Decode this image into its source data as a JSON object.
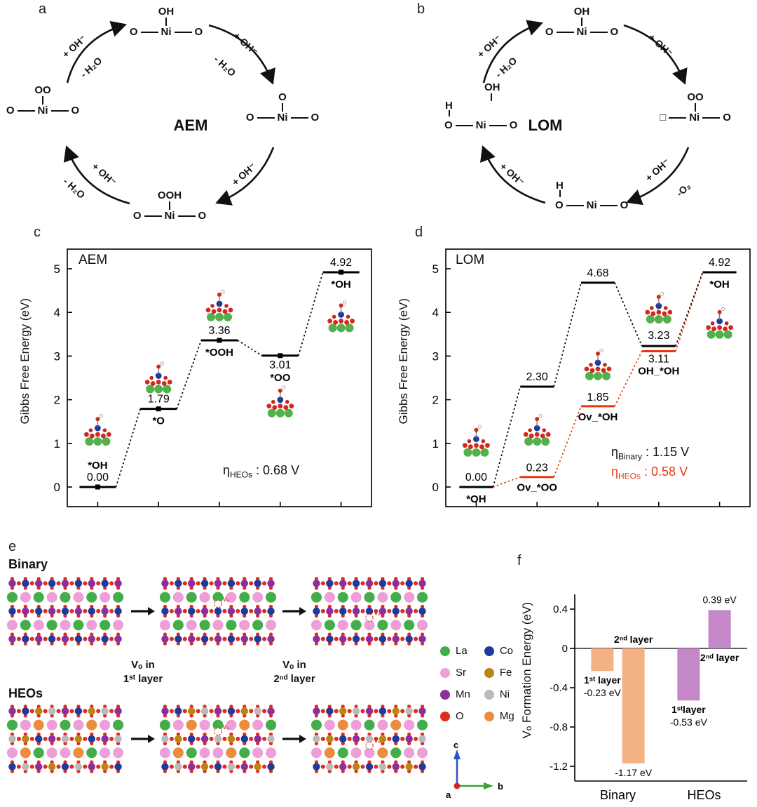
{
  "panels": {
    "a": "a",
    "b": "b",
    "c": "c",
    "d": "d",
    "e": "e",
    "f": "f"
  },
  "cycle_a": {
    "center": "AEM",
    "species": {
      "top": {
        "above": "OH",
        "l": "O",
        "m": "Ni",
        "r": "O"
      },
      "right": {
        "above": "O",
        "l": "O",
        "m": "Ni",
        "r": "O"
      },
      "bottom": {
        "above": "OOH",
        "l": "O",
        "m": "Ni",
        "r": "O"
      },
      "left": {
        "above": "OO",
        "l": "O",
        "m": "Ni",
        "r": "O"
      }
    },
    "arrows": {
      "tl1": "+ OH⁻",
      "tl2": "- H₂O",
      "tr1": "+ OH⁻",
      "tr2": "- H₂O",
      "br1": "+ OH⁻",
      "bl1": "+ OH⁻",
      "bl2": "- H₂O"
    }
  },
  "cycle_b": {
    "center": "LOM",
    "species": {
      "top": {
        "above": "OH",
        "l": "O",
        "m": "Ni",
        "r": "O"
      },
      "right": {
        "above": "OO",
        "l": "□",
        "m": "Ni",
        "r": "O"
      },
      "bottom": {
        "h": "H",
        "l": "O",
        "m": "Ni",
        "r": "O"
      },
      "left": {
        "above": "OH",
        "h": "H",
        "l": "O",
        "m": "Ni",
        "r": "O"
      }
    },
    "arrows": {
      "tl1": "+ OH⁻",
      "tl2": "- H₂O",
      "tr1": "+ OH⁻",
      "br1": "+ OH⁻",
      "br2": "-O₂",
      "bl1": "+ OH⁻"
    }
  },
  "chart_data": [
    {
      "id": "svg-aem",
      "type": "line",
      "title": "AEM",
      "ylabel": "Gibbs Free Energy (eV)",
      "ylim": [
        -0.45,
        5.45
      ],
      "yticks": [
        0,
        1,
        2,
        3,
        4,
        5
      ],
      "n": 5,
      "half": 26,
      "m": {
        "l": 78,
        "t": 10,
        "r": 10,
        "b": 38
      },
      "series": [
        {
          "name": "HEOs",
          "color": "#000000",
          "marker": true,
          "values": [
            0.0,
            1.79,
            3.36,
            3.01,
            4.92
          ],
          "step_labels": [
            "*OH",
            "*O",
            "*OOH",
            "*OO",
            "*OH"
          ]
        }
      ],
      "overpotential": {
        "sym": "η",
        "sub": "HEOs",
        "rest": " : 0.68 V"
      },
      "labels": [
        {
          "step": 0,
          "y": 0,
          "dy": -26,
          "text": "*OH",
          "bold": true
        },
        {
          "step": 0,
          "y": 0,
          "dy": -9,
          "text": "0.00"
        },
        {
          "step": 1,
          "y": 1.79,
          "dy": -9,
          "text": "1.79"
        },
        {
          "step": 1,
          "y": 1.79,
          "dy": 22,
          "text": "*O",
          "bold": true
        },
        {
          "step": 2,
          "y": 3.36,
          "dy": -9,
          "text": "3.36"
        },
        {
          "step": 2,
          "y": 3.36,
          "dy": 22,
          "text": "*OOH",
          "bold": true
        },
        {
          "step": 3,
          "y": 3.01,
          "dy": 18,
          "text": "3.01"
        },
        {
          "step": 3,
          "y": 3.01,
          "dy": 36,
          "text": "*OO",
          "bold": true
        },
        {
          "step": 4,
          "y": 4.92,
          "dy": -9,
          "text": "4.92"
        },
        {
          "step": 4,
          "y": 4.92,
          "dy": 22,
          "text": "*OH",
          "bold": true
        }
      ],
      "insets": [
        {
          "step": 0,
          "y": 1.3
        },
        {
          "step": 1,
          "y": 2.5
        },
        {
          "step": 2,
          "y": 4.15
        },
        {
          "step": 3,
          "y": 1.95
        },
        {
          "step": 4,
          "y": 3.9
        }
      ]
    },
    {
      "id": "svg-lom",
      "type": "line",
      "title": "LOM",
      "ylabel": "Gibbs Free Energy (eV)",
      "ylim": [
        -0.45,
        5.45
      ],
      "yticks": [
        0,
        1,
        2,
        3,
        4,
        5
      ],
      "n": 5,
      "half": 24,
      "m": {
        "l": 78,
        "t": 10,
        "r": 10,
        "b": 38
      },
      "series": [
        {
          "name": "HEOs",
          "color": "#e8380f",
          "marker": false,
          "values": [
            0.0,
            0.23,
            1.85,
            3.11,
            4.92
          ],
          "step_labels": [
            "*OH",
            "Ov_*OO",
            "Ov_*OH",
            "OH_*OH",
            "*OH"
          ]
        },
        {
          "name": "Binary",
          "color": "#000000",
          "marker": false,
          "values": [
            0.0,
            2.3,
            4.68,
            3.23,
            4.92
          ],
          "step_labels": [
            "*OH",
            "",
            "",
            "",
            "*OH"
          ]
        }
      ],
      "overpotentials": [
        {
          "sym": "η",
          "sub": "Binary",
          "rest": " : 1.15 V",
          "color": "#000000"
        },
        {
          "sym": "η",
          "sub": "HEOs",
          "rest": " : 0.58 V",
          "color": "#e8380f"
        }
      ],
      "labels": [
        {
          "step": 0,
          "y": 0,
          "dy": -9,
          "text": "0.00"
        },
        {
          "step": 0,
          "y": 0,
          "dy": 22,
          "text": "*OH",
          "bold": true
        },
        {
          "step": 1,
          "y": 2.3,
          "dy": -9,
          "text": "2.30"
        },
        {
          "step": 1,
          "y": 0.23,
          "dy": -8,
          "text": "0.23"
        },
        {
          "step": 1,
          "y": 0.23,
          "dy": 20,
          "text": "Ov_*OO",
          "bold": true
        },
        {
          "step": 2,
          "y": 4.68,
          "dy": -9,
          "text": "4.68"
        },
        {
          "step": 2,
          "y": 1.85,
          "dy": -8,
          "text": "1.85"
        },
        {
          "step": 2,
          "y": 1.85,
          "dy": 20,
          "text": "Ov_*OH",
          "bold": true
        },
        {
          "step": 3,
          "y": 3.23,
          "dy": -10,
          "text": "3.23"
        },
        {
          "step": 3,
          "y": 3.11,
          "dy": 16,
          "text": "3.11"
        },
        {
          "step": 3,
          "y": 3.11,
          "dy": 33,
          "text": "OH_*OH",
          "bold": true
        },
        {
          "step": 4,
          "y": 4.92,
          "dy": -9,
          "text": "4.92"
        },
        {
          "step": 4,
          "y": 4.92,
          "dy": 22,
          "text": "*OH",
          "bold": true
        }
      ],
      "insets": [
        {
          "step": 0,
          "y": 1.05
        },
        {
          "step": 1,
          "y": 1.3
        },
        {
          "step": 2,
          "y": 2.8
        },
        {
          "step": 3,
          "y": 4.1
        },
        {
          "step": 4,
          "y": 3.75
        }
      ]
    },
    {
      "id": "svg-vo",
      "type": "bar",
      "ylabel": "Vₒ Formation Energy (eV)",
      "ylim": [
        -1.35,
        0.55
      ],
      "m": {
        "l": 58,
        "t": 12,
        "r": 14,
        "b": 32
      },
      "yticks": [
        {
          "v": 0.4,
          "t": "0.4"
        },
        {
          "v": 0,
          "t": "0"
        },
        {
          "v": -0.4,
          "t": "-0.4"
        },
        {
          "v": -0.8,
          "t": "-0.8"
        },
        {
          "v": -1.2,
          "t": "-1.2"
        }
      ],
      "groups": [
        {
          "label": "Binary",
          "x": 0.25
        },
        {
          "label": "HEOs",
          "x": 0.75
        }
      ],
      "bars": [
        {
          "group": "Binary",
          "xf": 0.16,
          "value": -0.23,
          "color": "#f4b183",
          "layer": "1ˢᵗ layer",
          "value_label": "-0.23 eV",
          "layer_pos": "below_bar",
          "value_pos": "below_layer"
        },
        {
          "group": "Binary",
          "xf": 0.34,
          "value": -1.17,
          "color": "#f4b183",
          "layer": "2ⁿᵈ layer",
          "value_label": "-1.17 eV",
          "layer_pos": "above_zero",
          "value_pos": "below_bar"
        },
        {
          "group": "HEOs",
          "xf": 0.66,
          "value": -0.53,
          "color": "#c488c8",
          "layer": "1ˢᵗlayer",
          "value_label": "-0.53 eV",
          "layer_pos": "below_bar",
          "value_pos": "below_layer"
        },
        {
          "group": "HEOs",
          "xf": 0.84,
          "value": 0.39,
          "color": "#c488c8",
          "layer": "2ⁿᵈ layer",
          "value_label": "0.39 eV",
          "layer_pos": "below_zero",
          "value_pos": "above_bar"
        }
      ]
    }
  ],
  "legend": {
    "items": [
      {
        "label": "La",
        "color": "#43ad49"
      },
      {
        "label": "Sr",
        "color": "#ee9fd9"
      },
      {
        "label": "Mn",
        "color": "#8e2d9c"
      },
      {
        "label": "O",
        "color": "#e02d1b"
      },
      {
        "label": "Co",
        "color": "#1f3a9f"
      },
      {
        "label": "Fe",
        "color": "#bb8511"
      },
      {
        "label": "Ni",
        "color": "#b8babd"
      },
      {
        "label": "Mg",
        "color": "#ec8d3d"
      }
    ]
  },
  "panel_e": {
    "binary": "Binary",
    "heos": "HEOs",
    "vo": "Vₒ",
    "vo_label1": {
      "l1": "Vₒ in",
      "l2": "1ˢᵗ layer"
    },
    "vo_label2": {
      "l1": "Vₒ in",
      "l2": "2ⁿᵈ layer"
    },
    "axes": {
      "c": "c",
      "b": "b",
      "a": "a"
    }
  }
}
